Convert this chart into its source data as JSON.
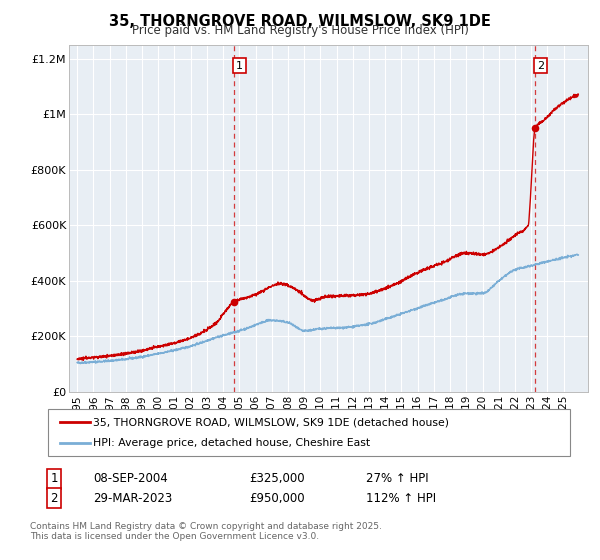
{
  "title": "35, THORNGROVE ROAD, WILMSLOW, SK9 1DE",
  "subtitle": "Price paid vs. HM Land Registry's House Price Index (HPI)",
  "legend_line1": "35, THORNGROVE ROAD, WILMSLOW, SK9 1DE (detached house)",
  "legend_line2": "HPI: Average price, detached house, Cheshire East",
  "footer_line1": "Contains HM Land Registry data © Crown copyright and database right 2025.",
  "footer_line2": "This data is licensed under the Open Government Licence v3.0.",
  "sale1_label": "1",
  "sale1_date": "08-SEP-2004",
  "sale1_price": "£325,000",
  "sale1_hpi": "27% ↑ HPI",
  "sale1_year": 2004.69,
  "sale1_value": 325000,
  "sale2_label": "2",
  "sale2_date": "29-MAR-2023",
  "sale2_price": "£950,000",
  "sale2_hpi": "112% ↑ HPI",
  "sale2_year": 2023.24,
  "sale2_value": 950000,
  "red_color": "#cc0000",
  "blue_color": "#7aaed6",
  "bg_color": "#e8eef4",
  "grid_color": "#ffffff",
  "ylim": [
    0,
    1250000
  ],
  "xlim": [
    1994.5,
    2026.5
  ],
  "yticks": [
    0,
    200000,
    400000,
    600000,
    800000,
    1000000,
    1200000
  ],
  "ytick_labels": [
    "£0",
    "£200K",
    "£400K",
    "£600K",
    "£800K",
    "£1M",
    "£1.2M"
  ],
  "xticks": [
    1995,
    1996,
    1997,
    1998,
    1999,
    2000,
    2001,
    2002,
    2003,
    2004,
    2005,
    2006,
    2007,
    2008,
    2009,
    2010,
    2011,
    2012,
    2013,
    2014,
    2015,
    2016,
    2017,
    2018,
    2019,
    2020,
    2021,
    2022,
    2023,
    2024,
    2025
  ]
}
